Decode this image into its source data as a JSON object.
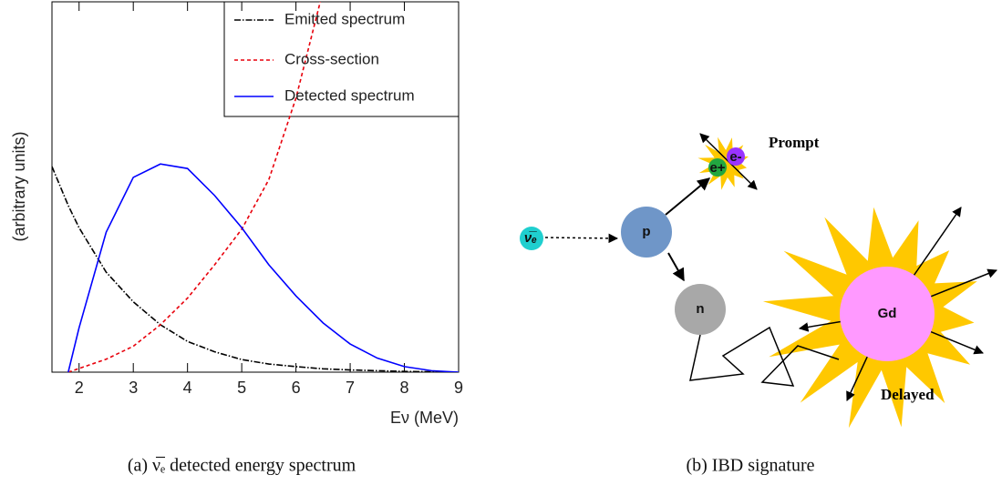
{
  "chart_data": {
    "type": "line",
    "ylabel": "(arbitrary units)",
    "xlabel": "Eν (MeV)",
    "xlim": [
      1.5,
      9
    ],
    "xticks": [
      2,
      3,
      4,
      5,
      6,
      7,
      8,
      9
    ],
    "ylim": [
      0,
      1
    ],
    "legend": "top-right",
    "x": [
      1.5,
      1.8,
      2,
      2.5,
      3,
      3.5,
      4,
      4.5,
      5,
      5.5,
      6,
      6.5,
      7,
      7.5,
      8,
      8.5,
      9
    ],
    "series": [
      {
        "name": "Emitted spectrum",
        "color": "#000000",
        "linestyle": "dashdot",
        "values": [
          0.555,
          0.45,
          0.39,
          0.27,
          0.19,
          0.128,
          0.083,
          0.055,
          0.034,
          0.022,
          0.015,
          0.009,
          0.006,
          0.004,
          0.002,
          0.001,
          0
        ]
      },
      {
        "name": "Cross-section",
        "color": "#e8000b",
        "linestyle": "dashed",
        "values": [
          null,
          0,
          0.01,
          0.035,
          0.07,
          0.128,
          0.2,
          0.29,
          0.386,
          0.52,
          0.74,
          1.03,
          null,
          null,
          null,
          null,
          null
        ]
      },
      {
        "name": "Detected spectrum",
        "color": "#0000ff",
        "linestyle": "solid",
        "values": [
          null,
          0,
          0.12,
          0.378,
          0.526,
          0.562,
          0.55,
          0.477,
          0.39,
          0.29,
          0.206,
          0.133,
          0.076,
          0.038,
          0.015,
          0.004,
          0
        ]
      }
    ]
  },
  "diagram": {
    "nodes": [
      {
        "label": "ν̅ₑ"
      },
      {
        "label": "p"
      },
      {
        "label": "n"
      },
      {
        "label": "Gd"
      },
      {
        "label": "e+"
      },
      {
        "label": "e-"
      }
    ],
    "labels": [
      "Prompt",
      "Delayed"
    ]
  },
  "captions": [
    "(a) ν̅ₑ detected energy spectrum",
    "(b) IBD signature"
  ]
}
